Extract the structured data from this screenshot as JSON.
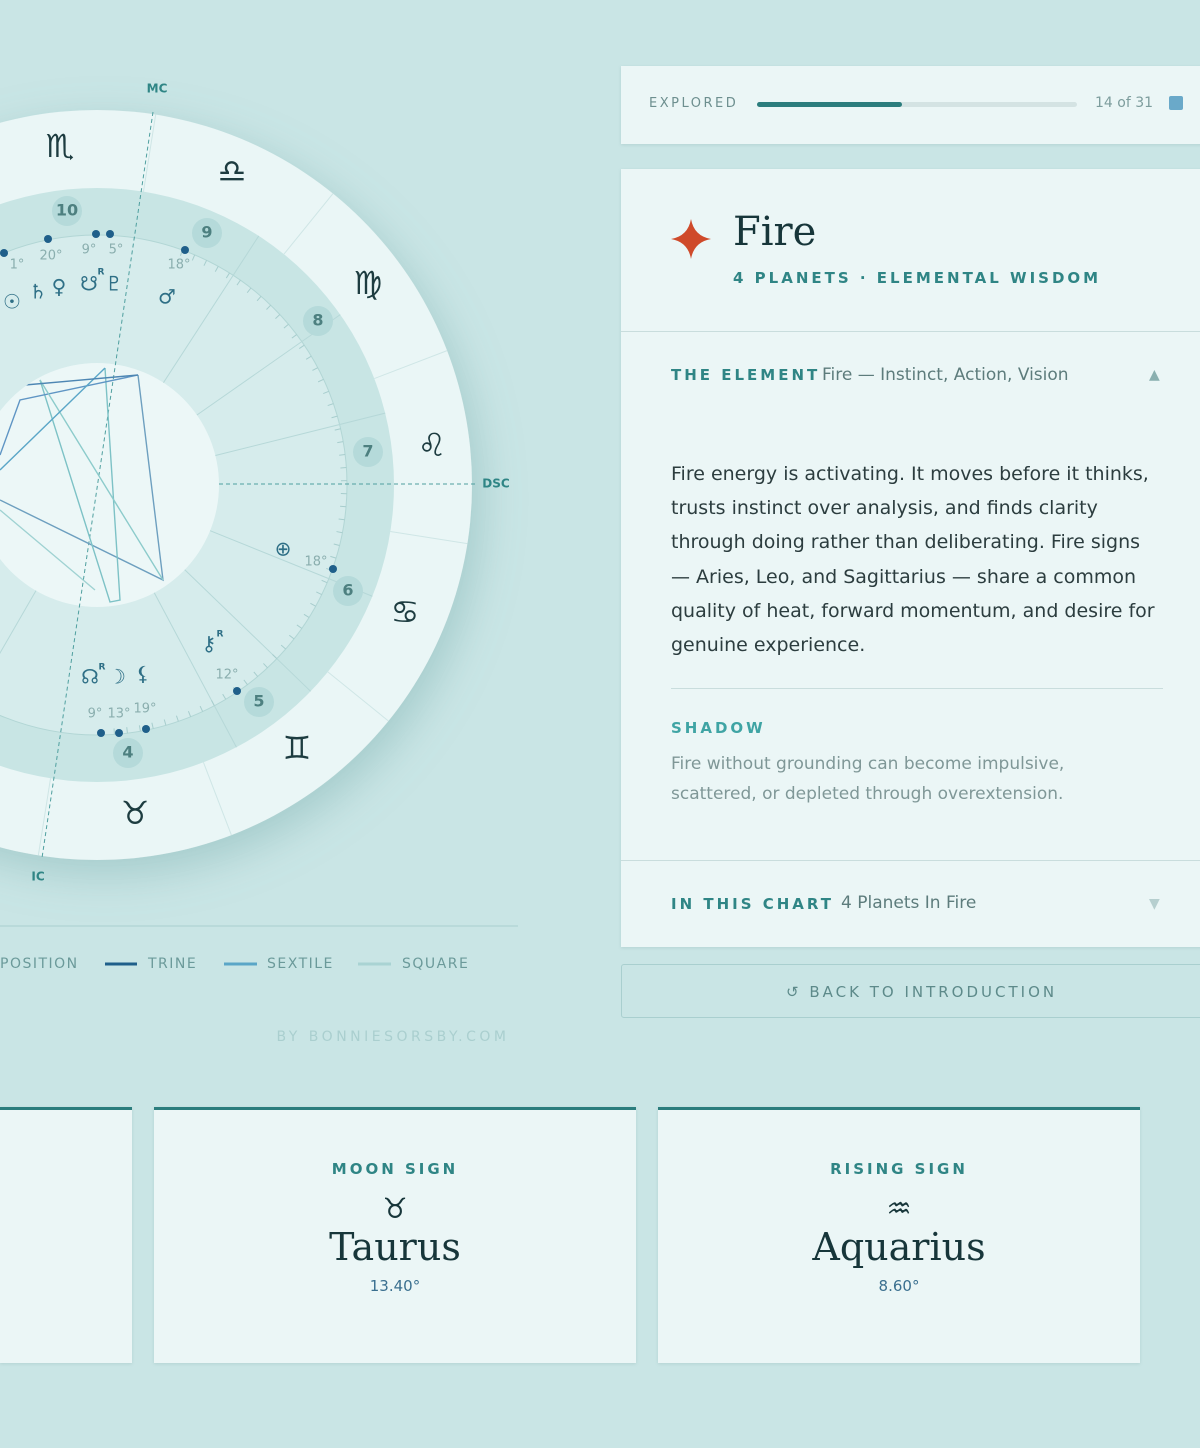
{
  "wheel": {
    "angles": [
      "MC",
      "DSC",
      "IC"
    ],
    "signs": [
      "♏",
      "♎",
      "♍",
      "♌",
      "♋",
      "♊",
      "♉"
    ],
    "houses": [
      "10",
      "9",
      "8",
      "7",
      "6",
      "5",
      "4"
    ],
    "degrees": [
      "1°",
      "20°",
      "9°",
      "5°",
      "18°",
      "18°",
      "12°",
      "9°",
      "13°",
      "19°"
    ],
    "planets": [
      "☉",
      "♄",
      "♀",
      "☋",
      "♇",
      "♂",
      "⊕",
      "⚷",
      "☊",
      "☽",
      "⚸"
    ],
    "retrograde": [
      "R",
      "R",
      "R"
    ]
  },
  "legend": [
    "POSITION",
    "TRINE",
    "SEXTILE",
    "SQUARE"
  ],
  "credit": "BY BONNIESORSBY.COM",
  "progress": {
    "label": "EXPLORED",
    "text": "14 of 31",
    "count": 14,
    "total": 31
  },
  "element_card": {
    "title": "Fire",
    "subtitle": "4 PLANETS · ELEMENTAL WISDOM",
    "sections": [
      {
        "label": "THE ELEMENT",
        "summary": "Fire — Instinct, Action, Vision",
        "toggle": "▲",
        "body": "Fire energy is activating. It moves before it thinks, trusts instinct over analysis, and finds clarity through doing rather than deliberating. Fire signs — Aries, Leo, and Sagittarius — share a common quality of heat, forward momentum, and desire for genuine experience.",
        "shadow_label": "SHADOW",
        "shadow_text": "Fire without grounding can become impulsive, scattered, or depleted through overextension."
      },
      {
        "label": "IN THIS CHART",
        "summary": "4 Planets In Fire",
        "toggle": "▼"
      }
    ]
  },
  "back_button": "↺ BACK TO INTRODUCTION",
  "sign_cards": [
    {
      "label": "MOON SIGN",
      "glyph": "♉",
      "name": "Taurus",
      "degree": "13.40°"
    },
    {
      "label": "RISING SIGN",
      "glyph": "♒",
      "name": "Aquarius",
      "degree": "8.60°"
    }
  ]
}
